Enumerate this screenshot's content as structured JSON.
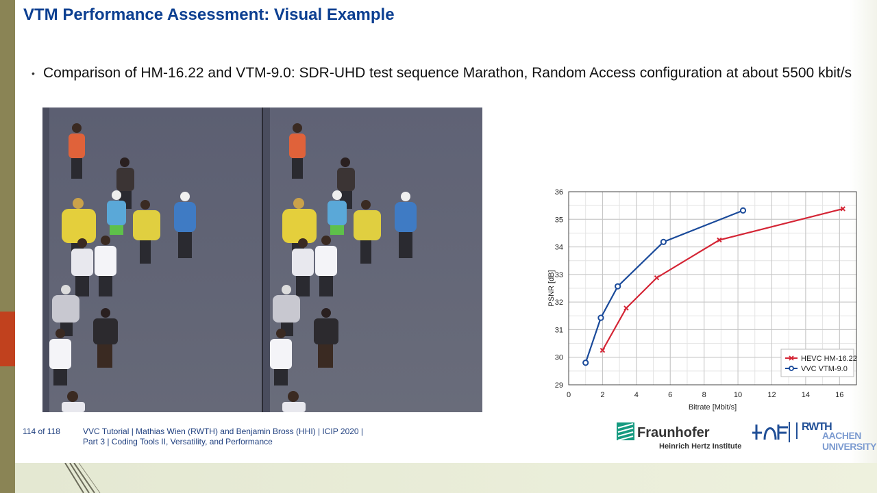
{
  "slide": {
    "title": "VTM Performance Assessment: Visual Example",
    "bullet_marker": "•",
    "bullet_text": "Comparison of HM-16.22 and VTM-9.0: SDR-UHD test sequence Marathon, Random Access configuration at about 5500 kbit/s"
  },
  "footer": {
    "page": "114 of 118",
    "line1": "VVC Tutorial  |  Mathias Wien (RWTH) and Benjamin Bross (HHI)  |  ICIP 2020  |",
    "line2": "Part 3  |  Coding Tools II, Versatility, and Performance"
  },
  "logos": {
    "fraunhofer_name": "Fraunhofer",
    "fraunhofer_sub": "Heinrich Hertz Institute",
    "rwth_line1": "RWTH",
    "rwth_line2": "AACHEN UNIVERSITY",
    "ienk_text": "IENT"
  },
  "colors": {
    "title": "#0c3f91",
    "hevc": "#d42535",
    "vvc": "#1a4a9a",
    "fraunhofer_green": "#159a80"
  },
  "chart_data": {
    "type": "line",
    "xlabel": "Bitrate [Mbit/s]",
    "ylabel": "PSNR [dB]",
    "xlim": [
      0,
      17
    ],
    "ylim": [
      29,
      36
    ],
    "x_ticks": [
      0,
      2,
      4,
      6,
      8,
      10,
      12,
      14,
      16
    ],
    "y_ticks": [
      29,
      30,
      31,
      32,
      33,
      34,
      35,
      36
    ],
    "grid": true,
    "legend": "bottom-right",
    "series": [
      {
        "name": "HEVC HM-16.22",
        "color": "#d42535",
        "marker": "x",
        "points": [
          {
            "x": 2.0,
            "y": 30.25
          },
          {
            "x": 3.4,
            "y": 31.78
          },
          {
            "x": 5.2,
            "y": 32.88
          },
          {
            "x": 8.9,
            "y": 34.25
          },
          {
            "x": 16.2,
            "y": 35.38
          }
        ]
      },
      {
        "name": "VVC VTM-9.0",
        "color": "#1a4a9a",
        "marker": "o",
        "points": [
          {
            "x": 1.0,
            "y": 29.8
          },
          {
            "x": 1.9,
            "y": 31.43
          },
          {
            "x": 2.9,
            "y": 32.57
          },
          {
            "x": 5.6,
            "y": 34.18
          },
          {
            "x": 10.3,
            "y": 35.32
          }
        ]
      }
    ]
  }
}
